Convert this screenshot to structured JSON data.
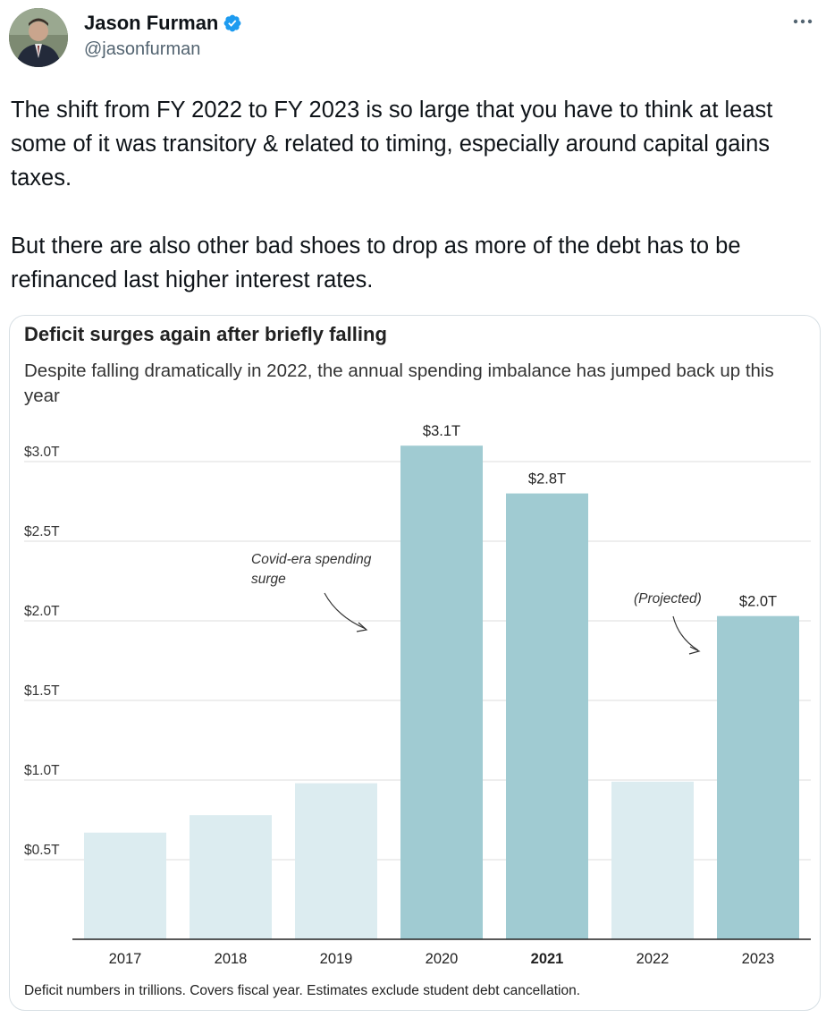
{
  "author": {
    "name": "Jason Furman",
    "handle": "@jasonfurman"
  },
  "icons": {
    "verified": "verified-badge-icon",
    "more": "more-options-icon"
  },
  "tweet": {
    "paragraphs": [
      "The shift from FY 2022 to FY 2023 is so large that you have to think at least some of it was transitory & related to timing, especially around capital gains taxes.",
      "But there are also other bad shoes to drop as more of the debt has to be refinanced last higher interest rates."
    ]
  },
  "colors": {
    "bar_light": "#dcecf0",
    "bar_dark": "#a0cbd2",
    "verified_blue": "#1d9bf0"
  },
  "chart_data": {
    "type": "bar",
    "title": "Deficit surges again after briefly falling",
    "subtitle": "Despite falling dramatically in 2022, the annual spending imbalance has jumped back up this year",
    "categories": [
      "2017",
      "2018",
      "2019",
      "2020",
      "2021",
      "2022",
      "2023"
    ],
    "values": [
      0.67,
      0.78,
      0.98,
      3.1,
      2.8,
      0.99,
      2.03
    ],
    "highlighted": [
      false,
      false,
      false,
      true,
      true,
      false,
      true
    ],
    "bold_category": "2021",
    "data_labels": [
      "",
      "",
      "",
      "$3.1T",
      "$2.8T",
      "",
      "$2.0T"
    ],
    "yticks": [
      0.5,
      1.0,
      1.5,
      2.0,
      2.5,
      3.0
    ],
    "ytick_labels": [
      "$0.5T",
      "$1.0T",
      "$1.5T",
      "$2.0T",
      "$2.5T",
      "$3.0T"
    ],
    "ylim": [
      0,
      3.1
    ],
    "grid": true,
    "annotations": [
      {
        "text_lines": [
          "Covid-era spending",
          "surge"
        ],
        "target": "2020"
      },
      {
        "text_lines": [
          "(Projected)"
        ],
        "target": "2023"
      }
    ],
    "note": "Deficit numbers in trillions. Covers fiscal year. Estimates exclude student debt cancellation."
  }
}
